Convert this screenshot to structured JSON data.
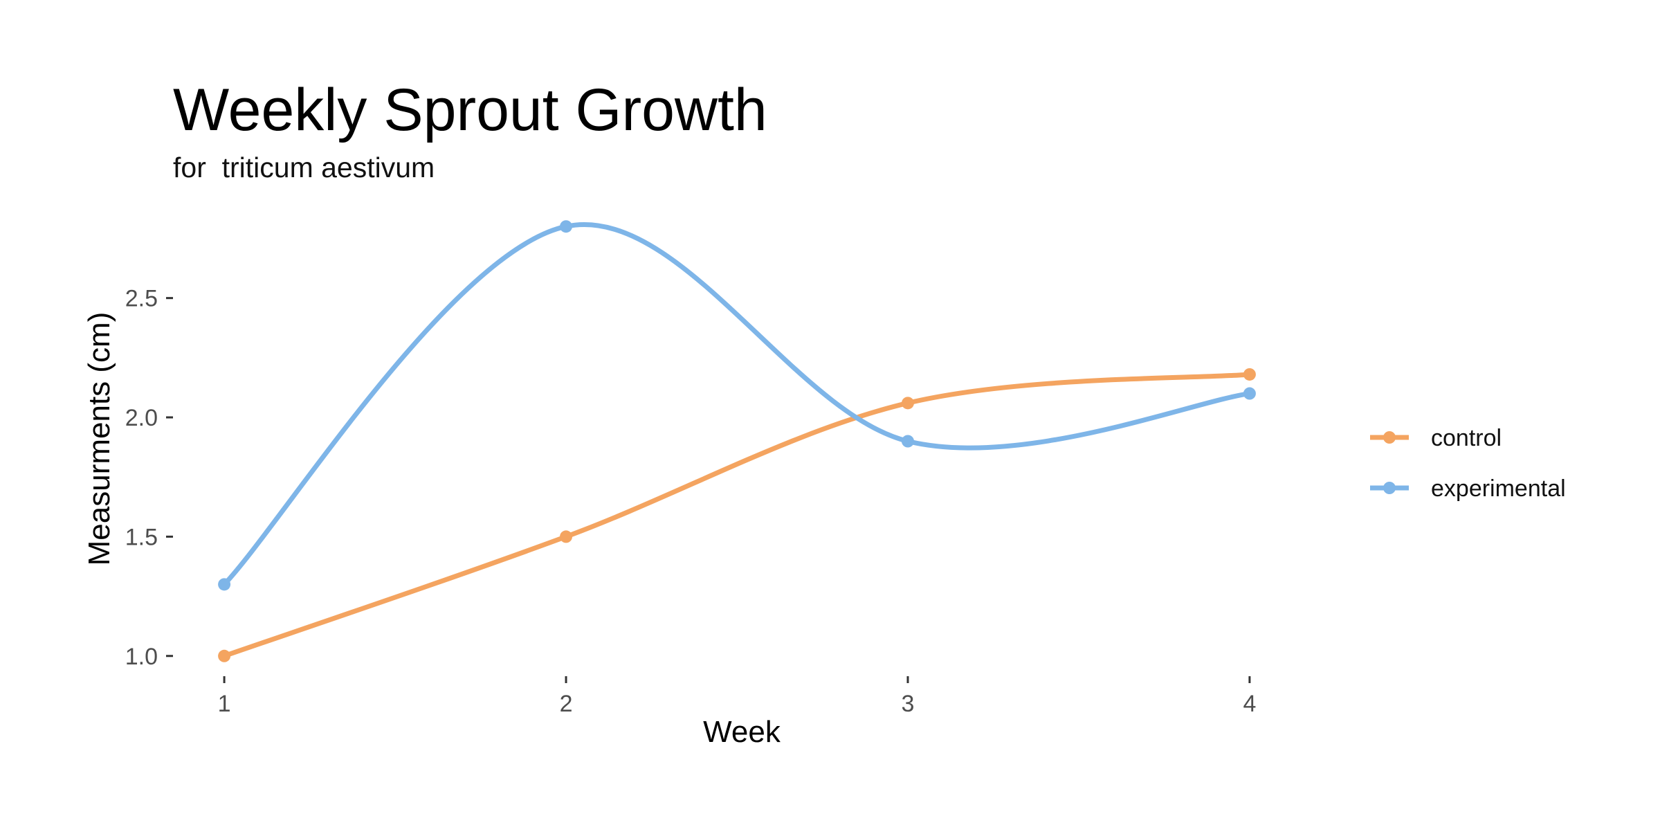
{
  "chart_data": {
    "type": "line",
    "title": "Weekly Sprout Growth",
    "subtitle": "for  triticum aestivum",
    "xlabel": "Week",
    "ylabel": "Measurments (cm)",
    "x": [
      1,
      2,
      3,
      4
    ],
    "x_tick_labels": [
      "1",
      "2",
      "3",
      "4"
    ],
    "y_ticks": [
      1.0,
      1.5,
      2.0,
      2.5
    ],
    "y_tick_labels": [
      "1.0",
      "1.5",
      "2.0",
      "2.5"
    ],
    "xlim": [
      0.85,
      4.15
    ],
    "ylim": [
      0.95,
      2.85
    ],
    "smoothed": true,
    "grid": false,
    "legend_position": "right",
    "series": [
      {
        "name": "control",
        "color": "#F4A460",
        "values": [
          1.0,
          1.5,
          2.06,
          2.18
        ]
      },
      {
        "name": "experimental",
        "color": "#7EB5E8",
        "values": [
          1.3,
          2.8,
          1.9,
          2.1
        ]
      }
    ]
  }
}
